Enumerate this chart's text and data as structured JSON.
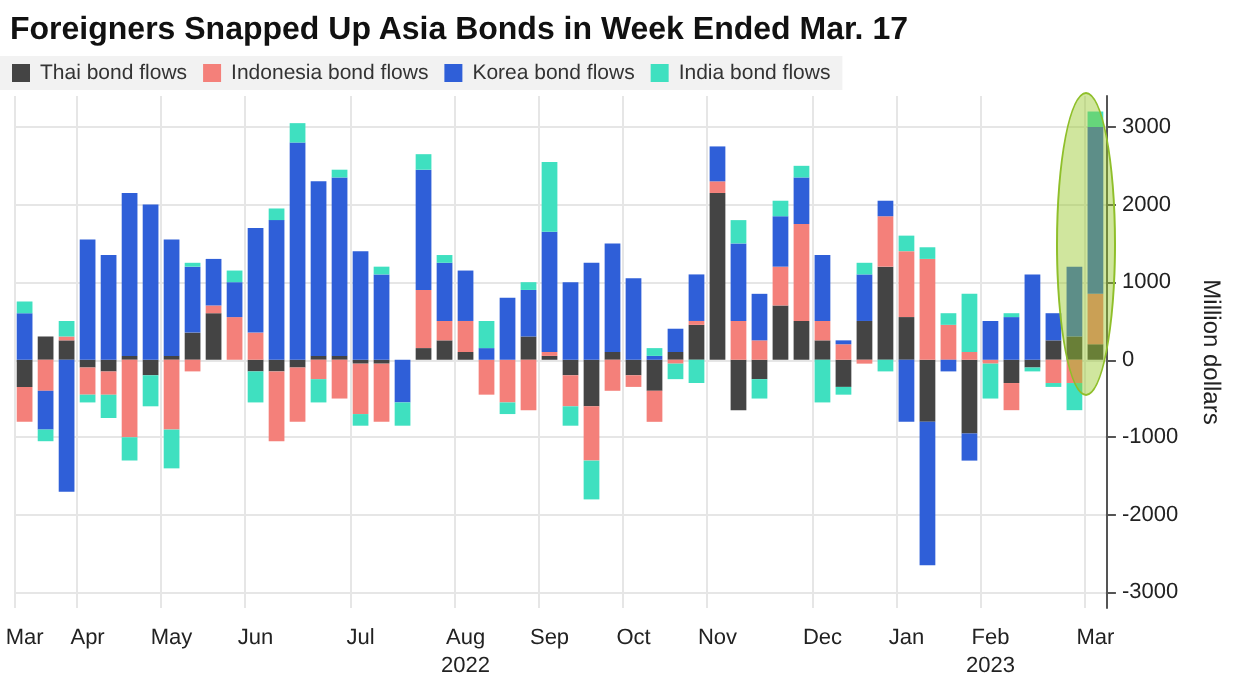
{
  "chart_data": {
    "type": "bar",
    "title": "Foreigners Snapped Up Asia Bonds in Week Ended Mar. 17",
    "ylabel": "Million dollars",
    "stacked": true,
    "legend": "top left",
    "grid": true,
    "categories": [
      "Mar",
      null,
      null,
      "Apr",
      null,
      null,
      null,
      "May",
      null,
      null,
      null,
      "Jun",
      null,
      null,
      null,
      null,
      "Jul",
      null,
      null,
      null,
      null,
      "Aug\n2022",
      null,
      null,
      null,
      "Sep",
      null,
      null,
      null,
      "Oct",
      null,
      null,
      null,
      "Nov",
      null,
      null,
      null,
      null,
      "Dec",
      null,
      null,
      null,
      "Jan",
      null,
      null,
      null,
      "Feb\n2023",
      null,
      null,
      null,
      null,
      "Mar"
    ],
    "series": [
      {
        "name": "Thai bond flows",
        "color": "#444444",
        "values": [
          -350,
          300,
          250,
          -100,
          -150,
          50,
          -200,
          50,
          350,
          600,
          0,
          -150,
          -150,
          -100,
          50,
          50,
          -50,
          -50,
          0,
          150,
          250,
          100,
          0,
          0,
          300,
          50,
          -200,
          -600,
          100,
          -200,
          -400,
          100,
          450,
          2150,
          -650,
          -250,
          700,
          500,
          250,
          -350,
          500,
          1200,
          550,
          -800,
          0,
          -950,
          0,
          -300,
          -100,
          250,
          300,
          200
        ]
      },
      {
        "name": "Indonesia bond flows",
        "color": "#f4807a",
        "values": [
          -450,
          -400,
          50,
          -350,
          -300,
          -1000,
          0,
          -900,
          -150,
          100,
          550,
          350,
          -900,
          -700,
          -250,
          -500,
          -650,
          -750,
          0,
          750,
          250,
          400,
          -450,
          -550,
          -650,
          50,
          -400,
          -700,
          -400,
          -150,
          -400,
          -50,
          50,
          150,
          500,
          250,
          500,
          1250,
          250,
          200,
          -50,
          650,
          850,
          1300,
          450,
          100,
          -50,
          -350,
          0,
          -300,
          -300,
          650
        ]
      },
      {
        "name": "Korea bond flows",
        "color": "#2f5fd8",
        "values": [
          600,
          -500,
          -1700,
          1550,
          1350,
          2100,
          2000,
          1500,
          850,
          600,
          450,
          1350,
          1800,
          2800,
          2250,
          2300,
          1400,
          1100,
          -550,
          1550,
          750,
          650,
          150,
          800,
          600,
          1550,
          1000,
          1250,
          1400,
          1050,
          50,
          300,
          600,
          450,
          1000,
          600,
          650,
          600,
          850,
          50,
          600,
          200,
          -800,
          -1850,
          -150,
          -350,
          500,
          550,
          1100,
          350,
          900,
          2150
        ]
      },
      {
        "name": "India bond flows",
        "color": "#3fe0c0",
        "values": [
          150,
          -150,
          200,
          -100,
          -300,
          -300,
          -400,
          -500,
          50,
          0,
          150,
          -400,
          150,
          250,
          -300,
          100,
          -150,
          100,
          -300,
          200,
          100,
          0,
          350,
          -150,
          100,
          900,
          -250,
          -500,
          0,
          0,
          100,
          -200,
          -300,
          0,
          300,
          -250,
          200,
          150,
          -550,
          -100,
          150,
          -150,
          200,
          150,
          150,
          750,
          -450,
          50,
          -50,
          -50,
          -350,
          200
        ]
      }
    ],
    "ylim": [
      -3200,
      3400
    ],
    "yticks": [
      -3000,
      -2000,
      -1000,
      0,
      1000,
      2000,
      3000
    ]
  }
}
